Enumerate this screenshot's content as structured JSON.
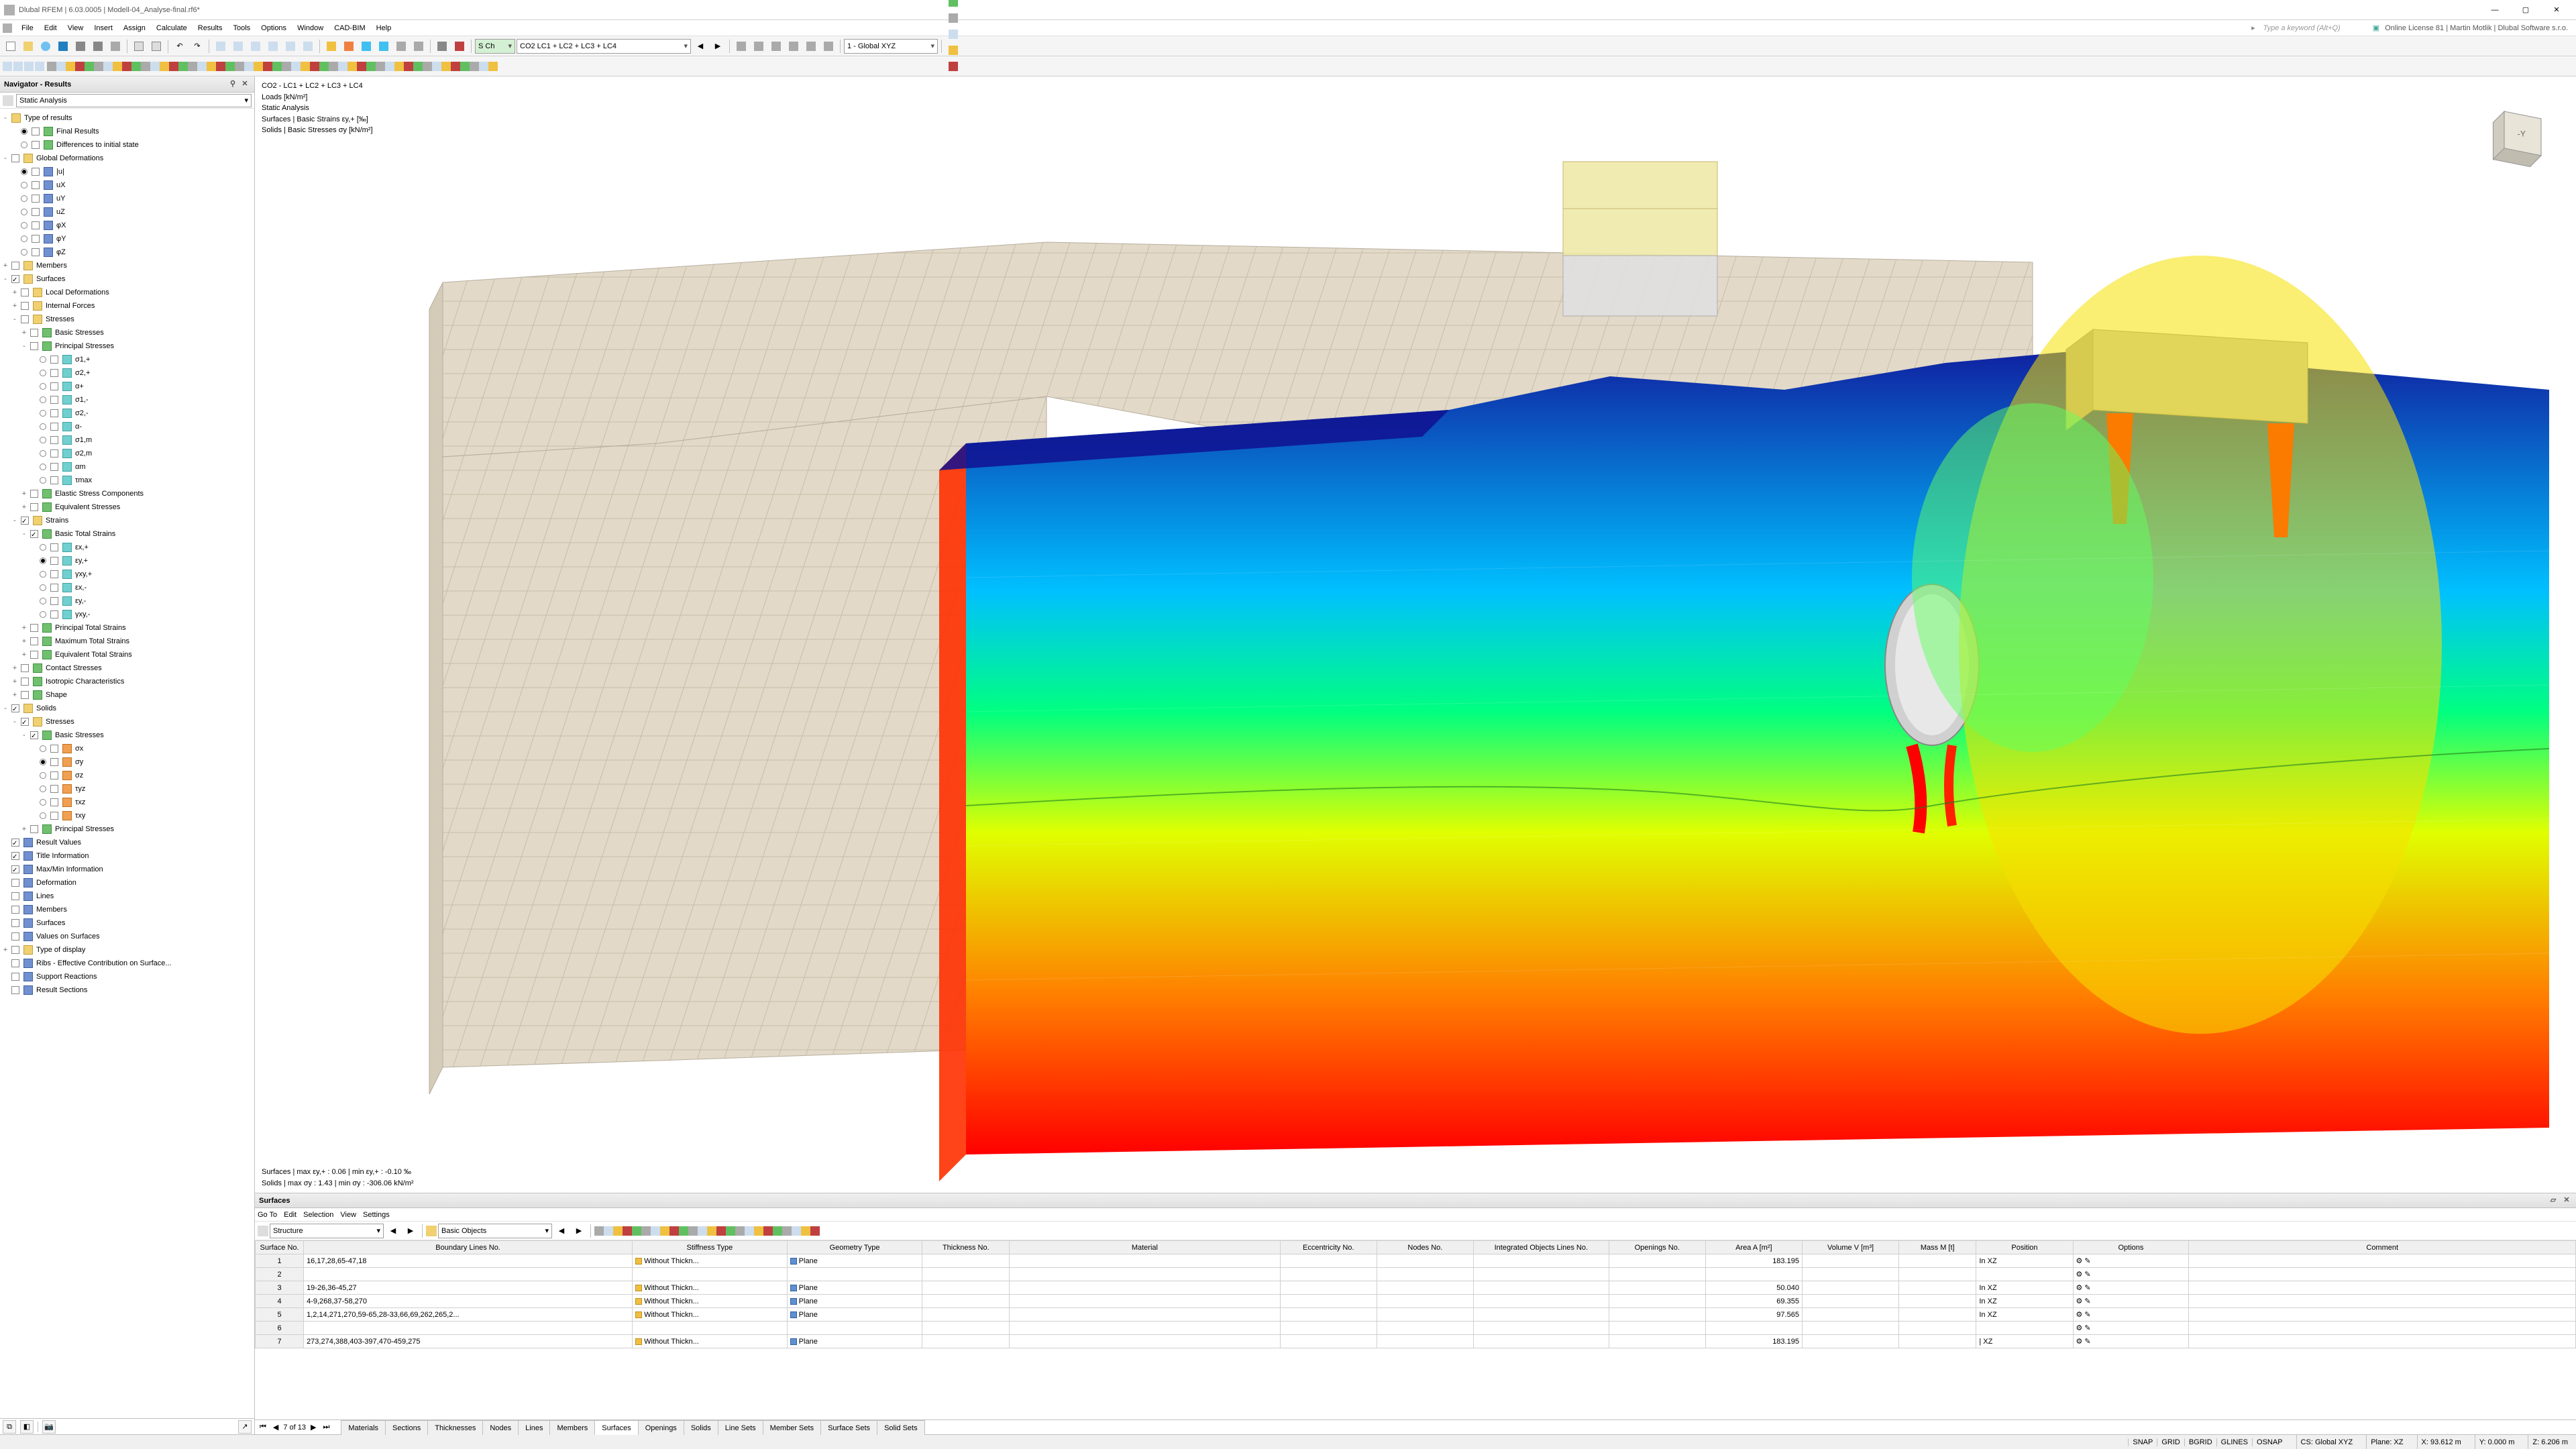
{
  "app": {
    "title": "Dlubal RFEM | 6.03.0005 | Modell-04_Analyse-final.rf6*",
    "search_hint": "Type a keyword (Alt+Q)",
    "license": "Online License 81 | Martin Motlik | Dlubal Software s.r.o."
  },
  "menus": [
    "File",
    "Edit",
    "View",
    "Insert",
    "Assign",
    "Calculate",
    "Results",
    "Tools",
    "Options",
    "Window",
    "CAD-BIM",
    "Help"
  ],
  "toolbar_combo1": "S Ch",
  "toolbar_combo2": "CO2   LC1 + LC2 + LC3 + LC4",
  "toolbar_combo3": "1 - Global XYZ",
  "navigator": {
    "title": "Navigator - Results",
    "mode": "Static Analysis",
    "tree": [
      {
        "ind": 0,
        "exp": "-",
        "label": "Type of results",
        "icon": "folder",
        "cb": false
      },
      {
        "ind": 1,
        "radio": true,
        "sel": true,
        "label": "Final Results",
        "icon": "green"
      },
      {
        "ind": 1,
        "radio": true,
        "label": "Differences to initial state",
        "icon": "green"
      },
      {
        "ind": 0,
        "exp": "-",
        "cb": true,
        "label": "Global Deformations",
        "icon": "folder"
      },
      {
        "ind": 1,
        "radio": true,
        "sel": true,
        "label": "|u|",
        "icon": "blue",
        "cb": false
      },
      {
        "ind": 1,
        "radio": true,
        "label": "uX",
        "icon": "blue",
        "cb": false
      },
      {
        "ind": 1,
        "radio": true,
        "label": "uY",
        "icon": "blue",
        "cb": false
      },
      {
        "ind": 1,
        "radio": true,
        "label": "uZ",
        "icon": "blue",
        "cb": false
      },
      {
        "ind": 1,
        "radio": true,
        "label": "φX",
        "icon": "blue",
        "cb": false
      },
      {
        "ind": 1,
        "radio": true,
        "label": "φY",
        "icon": "blue",
        "cb": false
      },
      {
        "ind": 1,
        "radio": true,
        "label": "φZ",
        "icon": "blue",
        "cb": false
      },
      {
        "ind": 0,
        "exp": "+",
        "cb": true,
        "label": "Members",
        "icon": "folder"
      },
      {
        "ind": 0,
        "exp": "-",
        "cb": true,
        "checked": true,
        "label": "Surfaces",
        "icon": "folder"
      },
      {
        "ind": 1,
        "exp": "+",
        "cb": true,
        "label": "Local Deformations",
        "icon": "folder"
      },
      {
        "ind": 1,
        "exp": "+",
        "cb": true,
        "label": "Internal Forces",
        "icon": "folder"
      },
      {
        "ind": 1,
        "exp": "-",
        "cb": true,
        "label": "Stresses",
        "icon": "folder"
      },
      {
        "ind": 2,
        "exp": "+",
        "cb": true,
        "label": "Basic Stresses",
        "icon": "green"
      },
      {
        "ind": 2,
        "exp": "-",
        "cb": true,
        "label": "Principal Stresses",
        "icon": "green"
      },
      {
        "ind": 3,
        "radio": true,
        "label": "σ1,+",
        "icon": "cyan",
        "cb": false
      },
      {
        "ind": 3,
        "radio": true,
        "label": "σ2,+",
        "icon": "cyan",
        "cb": false
      },
      {
        "ind": 3,
        "radio": true,
        "label": "α+",
        "icon": "cyan",
        "cb": false
      },
      {
        "ind": 3,
        "radio": true,
        "label": "σ1,-",
        "icon": "cyan",
        "cb": false
      },
      {
        "ind": 3,
        "radio": true,
        "label": "σ2,-",
        "icon": "cyan",
        "cb": false
      },
      {
        "ind": 3,
        "radio": true,
        "label": "α-",
        "icon": "cyan",
        "cb": false
      },
      {
        "ind": 3,
        "radio": true,
        "label": "σ1,m",
        "icon": "cyan",
        "cb": false
      },
      {
        "ind": 3,
        "radio": true,
        "label": "σ2,m",
        "icon": "cyan",
        "cb": false
      },
      {
        "ind": 3,
        "radio": true,
        "label": "αm",
        "icon": "cyan",
        "cb": false
      },
      {
        "ind": 3,
        "radio": true,
        "label": "τmax",
        "icon": "cyan",
        "cb": false
      },
      {
        "ind": 2,
        "exp": "+",
        "cb": true,
        "label": "Elastic Stress Components",
        "icon": "green"
      },
      {
        "ind": 2,
        "exp": "+",
        "cb": true,
        "label": "Equivalent Stresses",
        "icon": "green"
      },
      {
        "ind": 1,
        "exp": "-",
        "cb": true,
        "checked": true,
        "label": "Strains",
        "icon": "folder"
      },
      {
        "ind": 2,
        "exp": "-",
        "cb": true,
        "checked": true,
        "label": "Basic Total Strains",
        "icon": "green"
      },
      {
        "ind": 3,
        "radio": true,
        "label": "εx,+",
        "icon": "cyan",
        "cb": false
      },
      {
        "ind": 3,
        "radio": true,
        "sel": true,
        "label": "εy,+",
        "icon": "cyan",
        "cb": false
      },
      {
        "ind": 3,
        "radio": true,
        "label": "γxy,+",
        "icon": "cyan",
        "cb": false
      },
      {
        "ind": 3,
        "radio": true,
        "label": "εx,-",
        "icon": "cyan",
        "cb": false
      },
      {
        "ind": 3,
        "radio": true,
        "label": "εy,-",
        "icon": "cyan",
        "cb": false
      },
      {
        "ind": 3,
        "radio": true,
        "label": "γxy,-",
        "icon": "cyan",
        "cb": false
      },
      {
        "ind": 2,
        "exp": "+",
        "cb": true,
        "label": "Principal Total Strains",
        "icon": "green"
      },
      {
        "ind": 2,
        "exp": "+",
        "cb": true,
        "label": "Maximum Total Strains",
        "icon": "green"
      },
      {
        "ind": 2,
        "exp": "+",
        "cb": true,
        "label": "Equivalent Total Strains",
        "icon": "green"
      },
      {
        "ind": 1,
        "exp": "+",
        "cb": true,
        "label": "Contact Stresses",
        "icon": "green"
      },
      {
        "ind": 1,
        "exp": "+",
        "cb": true,
        "label": "Isotropic Characteristics",
        "icon": "green"
      },
      {
        "ind": 1,
        "exp": "+",
        "cb": true,
        "label": "Shape",
        "icon": "green"
      },
      {
        "ind": 0,
        "exp": "-",
        "cb": true,
        "checked": true,
        "label": "Solids",
        "icon": "folder"
      },
      {
        "ind": 1,
        "exp": "-",
        "cb": true,
        "checked": true,
        "label": "Stresses",
        "icon": "folder"
      },
      {
        "ind": 2,
        "exp": "-",
        "cb": true,
        "checked": true,
        "label": "Basic Stresses",
        "icon": "green"
      },
      {
        "ind": 3,
        "radio": true,
        "label": "σx",
        "icon": "orange",
        "cb": false
      },
      {
        "ind": 3,
        "radio": true,
        "sel": true,
        "label": "σy",
        "icon": "orange",
        "cb": false
      },
      {
        "ind": 3,
        "radio": true,
        "label": "σz",
        "icon": "orange",
        "cb": false
      },
      {
        "ind": 3,
        "radio": true,
        "label": "τyz",
        "icon": "orange",
        "cb": false
      },
      {
        "ind": 3,
        "radio": true,
        "label": "τxz",
        "icon": "orange",
        "cb": false
      },
      {
        "ind": 3,
        "radio": true,
        "label": "τxy",
        "icon": "orange",
        "cb": false
      },
      {
        "ind": 2,
        "exp": "+",
        "cb": true,
        "label": "Principal Stresses",
        "icon": "green"
      },
      {
        "ind": 0,
        "cb": true,
        "checked": true,
        "label": "Result Values",
        "icon": "blue"
      },
      {
        "ind": 0,
        "cb": true,
        "checked": true,
        "label": "Title Information",
        "icon": "blue"
      },
      {
        "ind": 0,
        "cb": true,
        "checked": true,
        "label": "Max/Min Information",
        "icon": "blue"
      },
      {
        "ind": 0,
        "cb": true,
        "label": "Deformation",
        "icon": "blue"
      },
      {
        "ind": 0,
        "cb": true,
        "label": "Lines",
        "icon": "blue"
      },
      {
        "ind": 0,
        "cb": true,
        "label": "Members",
        "icon": "blue"
      },
      {
        "ind": 0,
        "cb": true,
        "label": "Surfaces",
        "icon": "blue"
      },
      {
        "ind": 0,
        "cb": true,
        "label": "Values on Surfaces",
        "icon": "blue"
      },
      {
        "ind": 0,
        "exp": "+",
        "cb": true,
        "label": "Type of display",
        "icon": "folder"
      },
      {
        "ind": 0,
        "cb": true,
        "label": "Ribs - Effective Contribution on Surface...",
        "icon": "blue"
      },
      {
        "ind": 0,
        "cb": true,
        "label": "Support Reactions",
        "icon": "blue"
      },
      {
        "ind": 0,
        "cb": true,
        "label": "Result Sections",
        "icon": "blue"
      }
    ]
  },
  "viewport": {
    "info": [
      "CO2 - LC1 + LC2 + LC3 + LC4",
      "Loads [kN/m²]",
      "Static Analysis",
      "Surfaces | Basic Strains εy,+ [‰]",
      "Solids | Basic Stresses σy [kN/m²]"
    ],
    "info_bottom": [
      "Surfaces | max εy,+ : 0.06 | min εy,+ : -0.10 ‰",
      "Solids | max σy : 1.43 | min σy : -306.06 kN/m²"
    ]
  },
  "panel": {
    "title": "Surfaces",
    "menus": [
      "Go To",
      "Edit",
      "Selection",
      "View",
      "Settings"
    ],
    "sel1": "Structure",
    "sel2": "Basic Objects",
    "columns": [
      "Surface No.",
      "Boundary Lines No.",
      "Stiffness Type",
      "Geometry Type",
      "Thickness No.",
      "Material",
      "Eccentricity No.",
      "Nodes No.",
      "Integrated Objects Lines No.",
      "Openings No.",
      "Area A [m²]",
      "Volume V [m³]",
      "Mass M [t]",
      "Position",
      "Options",
      "Comment"
    ],
    "rows": [
      {
        "no": "1",
        "bl": "16,17,28,65-47,18",
        "st": "Without Thickn...",
        "gt": "Plane",
        "area": "183.195",
        "pos": "In XZ"
      },
      {
        "no": "2",
        "bl": "",
        "st": "",
        "gt": "",
        "area": "",
        "pos": ""
      },
      {
        "no": "3",
        "bl": "19-26,36-45,27",
        "st": "Without Thickn...",
        "gt": "Plane",
        "area": "50.040",
        "pos": "In XZ"
      },
      {
        "no": "4",
        "bl": "4-9,268,37-58,270",
        "st": "Without Thickn...",
        "gt": "Plane",
        "area": "69.355",
        "pos": "In XZ"
      },
      {
        "no": "5",
        "bl": "1,2,14,271,270,59-65,28-33,66,69,262,265,2...",
        "st": "Without Thickn...",
        "gt": "Plane",
        "area": "97.565",
        "pos": "In XZ"
      },
      {
        "no": "6",
        "bl": "",
        "st": "",
        "gt": "",
        "area": "",
        "pos": ""
      },
      {
        "no": "7",
        "bl": "273,274,388,403-397,470-459,275",
        "st": "Without Thickn...",
        "gt": "Plane",
        "area": "183.195",
        "pos": "| XZ"
      }
    ],
    "pager": "7 of 13",
    "tabs": [
      "Materials",
      "Sections",
      "Thicknesses",
      "Nodes",
      "Lines",
      "Members",
      "Surfaces",
      "Openings",
      "Solids",
      "Line Sets",
      "Member Sets",
      "Surface Sets",
      "Solid Sets"
    ],
    "active_tab": 6
  },
  "status": {
    "snap": [
      "SNAP",
      "GRID",
      "BGRID",
      "GLINES",
      "OSNAP"
    ],
    "cs": "CS: Global XYZ",
    "plane": "Plane: XZ",
    "x": "X: 93.612 m",
    "y": "Y: 0.000 m",
    "z": "Z: 6.206 m"
  },
  "colors": {
    "accent": "#0078d7",
    "mesh": "#d8cfc0",
    "mesh_line": "#b8ae9e"
  }
}
